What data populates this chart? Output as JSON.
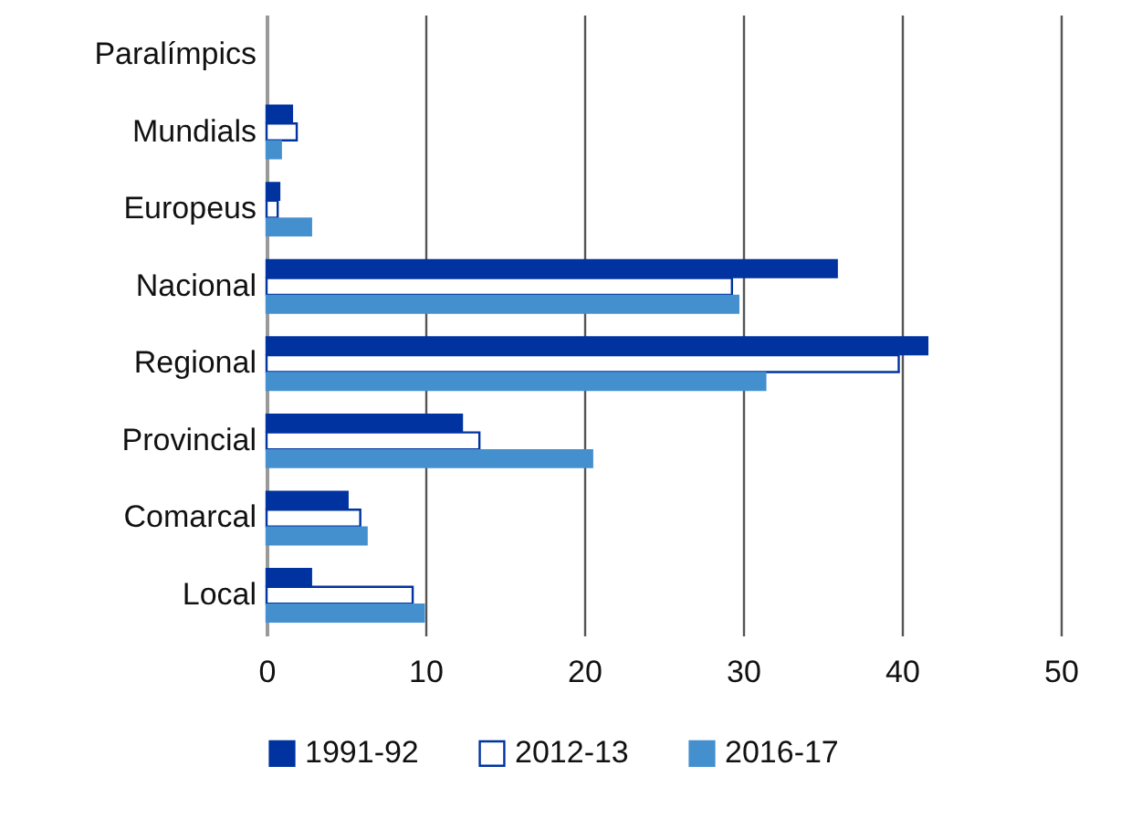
{
  "chart_data": {
    "type": "bar",
    "orientation": "horizontal",
    "categories": [
      "Paralímpics",
      "Mundials",
      "Europeus",
      "Nacional",
      "Regional",
      "Provincial",
      "Comarcal",
      "Local"
    ],
    "series": [
      {
        "name": "1991-92",
        "color": "#0033a0",
        "values": [
          null,
          1.6,
          0.8,
          35.9,
          41.6,
          12.3,
          5.1,
          2.8
        ]
      },
      {
        "name": "2012-13",
        "color": "#ffffff",
        "values": [
          null,
          1.9,
          0.7,
          29.3,
          39.8,
          13.4,
          5.9,
          9.2
        ]
      },
      {
        "name": "2016-17",
        "color": "#4490cf",
        "values": [
          null,
          0.9,
          2.8,
          29.7,
          31.4,
          20.5,
          6.3,
          9.9
        ]
      }
    ],
    "xlim": [
      0,
      50
    ],
    "xticks": [
      0,
      10,
      20,
      30,
      40,
      50
    ],
    "grid": "x",
    "legend": "bottom"
  }
}
